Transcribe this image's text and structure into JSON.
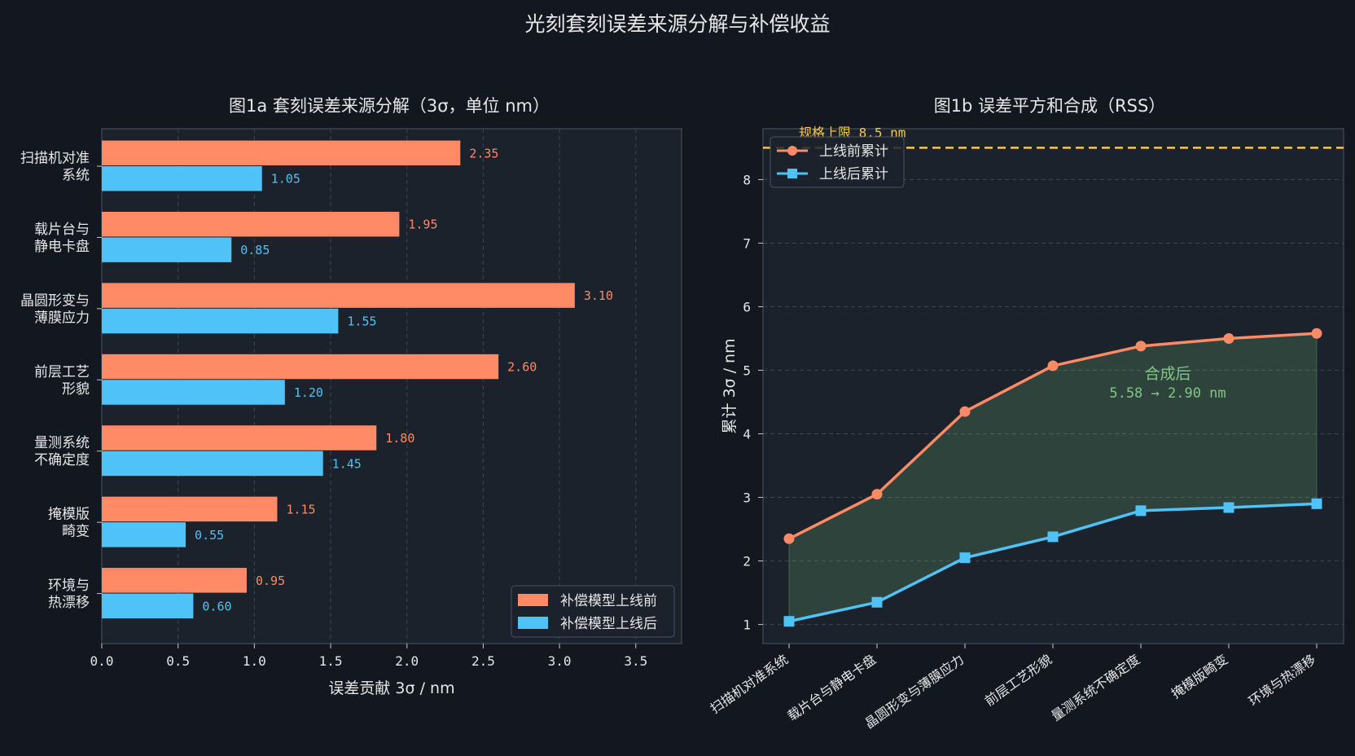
{
  "figure_title": "光刻套刻误差来源分解与补偿收益",
  "colors": {
    "background": "#131820",
    "panel": "#1b222c",
    "before": "#ff8a65",
    "after": "#4fc3f7",
    "spec": "#f2c94c",
    "annotation": "#81c784",
    "text": "#e6e6e6"
  },
  "chart_data": [
    {
      "type": "bar",
      "orientation": "horizontal",
      "title": "图1a 套刻误差来源分解（3σ，单位 nm）",
      "xlabel": "误差贡献 3σ / nm",
      "ylabel": "",
      "xlim": [
        0,
        3.8
      ],
      "xticks": [
        "0.0",
        "0.5",
        "1.0",
        "1.5",
        "2.0",
        "2.5",
        "3.0",
        "3.5"
      ],
      "categories": [
        "扫描机对准\n系统",
        "载片台与\n静电卡盘",
        "晶圆形变与\n薄膜应力",
        "前层工艺\n形貌",
        "量测系统\n不确定度",
        "掩模版\n畸变",
        "环境与\n热漂移"
      ],
      "series": [
        {
          "name": "补偿模型上线前",
          "values": [
            2.35,
            1.95,
            3.1,
            2.6,
            1.8,
            1.15,
            0.95
          ],
          "labels": [
            "2.35",
            "1.95",
            "3.10",
            "2.60",
            "1.80",
            "1.15",
            "0.95"
          ]
        },
        {
          "name": "补偿模型上线后",
          "values": [
            1.05,
            0.85,
            1.55,
            1.2,
            1.45,
            0.55,
            0.6
          ],
          "labels": [
            "1.05",
            "0.85",
            "1.55",
            "1.20",
            "1.45",
            "0.55",
            "0.60"
          ]
        }
      ],
      "grid": true,
      "legend": "lower-right"
    },
    {
      "type": "line",
      "title": "图1b 误差平方和合成（RSS）",
      "xlabel": "",
      "ylabel": "累计 3σ / nm",
      "ylim": [
        0.7,
        8.8
      ],
      "yticks": [
        "1",
        "2",
        "3",
        "4",
        "5",
        "6",
        "7",
        "8"
      ],
      "categories": [
        "扫描机对准系统",
        "载片台与静电卡盘",
        "晶圆形变与薄膜应力",
        "前层工艺形貌",
        "量测系统不确定度",
        "掩模版畸变",
        "环境与热漂移"
      ],
      "series": [
        {
          "name": "上线前累计",
          "values": [
            2.35,
            3.05,
            4.35,
            5.07,
            5.38,
            5.5,
            5.58
          ]
        },
        {
          "name": "上线后累计",
          "values": [
            1.05,
            1.35,
            2.05,
            2.38,
            2.79,
            2.84,
            2.9
          ]
        }
      ],
      "spec_limit": {
        "value": 8.5,
        "label": "规格上限 8.5 nm"
      },
      "annotation": {
        "line1": "合成后",
        "line2": "5.58 → 2.90 nm"
      },
      "grid": true,
      "legend": "top-left"
    }
  ]
}
